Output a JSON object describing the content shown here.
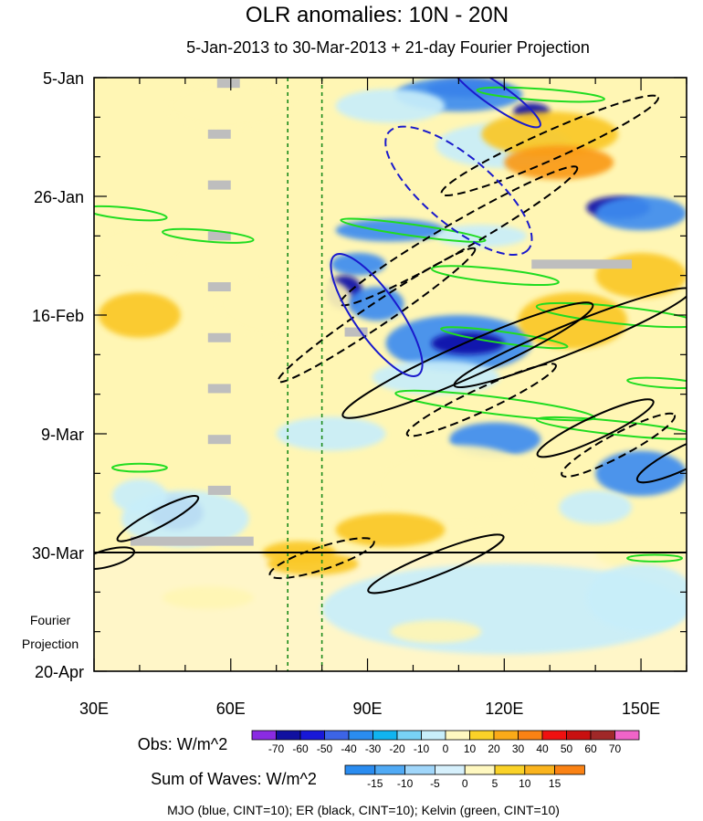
{
  "chart_data": {
    "type": "heatmap",
    "title": "OLR anomalies: 10N - 20N",
    "subtitle": "5-Jan-2013 to 30-Mar-2013 + 21-day Fourier Projection",
    "x_axis": {
      "range": [
        30,
        160
      ],
      "ticks": [
        30,
        60,
        90,
        120,
        150
      ],
      "tick_labels": [
        "30E",
        "60E",
        "90E",
        "120E",
        "150E"
      ]
    },
    "y_axis": {
      "range_days": [
        0,
        105
      ],
      "ticks_days": [
        0,
        21,
        42,
        63,
        84,
        105
      ],
      "tick_labels": [
        "5-Jan",
        "26-Jan",
        "16-Feb",
        "9-Mar",
        "30-Mar",
        "20-Apr"
      ],
      "projection_label_line1": "Fourier",
      "projection_label_line2": "Projection"
    },
    "observation_end_day": 84,
    "reference_longitudes": [
      72.5,
      80
    ],
    "colors": {
      "neg_strong": "#0f0fa8",
      "neg_mid": "#3c8cf0",
      "neg_weak": "#c8eefa",
      "pos_weak": "#fff6b4",
      "pos_mid": "#fac828",
      "pos_strong": "#fa9a14",
      "missing": "#bebebe",
      "mjo": "#1a1acc",
      "er": "#000000",
      "kelvin": "#20dc20",
      "ref_line": "#1a8a1a"
    },
    "obs_colorbar": {
      "label": "Obs: W/m^2",
      "levels": [
        "-70",
        "-60",
        "-50",
        "-40",
        "-30",
        "-20",
        "-10",
        "0",
        "10",
        "20",
        "30",
        "40",
        "50",
        "60",
        "70"
      ],
      "colors": [
        "#8a2be2",
        "#1010a0",
        "#1818d8",
        "#3c64e6",
        "#2a8cf0",
        "#10b4f0",
        "#78d2f5",
        "#c8eefa",
        "#fff8c0",
        "#fad228",
        "#faaa18",
        "#fa8214",
        "#f01010",
        "#c81010",
        "#a02828",
        "#f064c8"
      ]
    },
    "waves_colorbar": {
      "label": "Sum of Waves: W/m^2",
      "levels": [
        "-15",
        "-10",
        "-5",
        "0",
        "5",
        "10",
        "15"
      ],
      "colors": [
        "#2a8cf0",
        "#50aaf5",
        "#a0d6fa",
        "#d6f0fc",
        "#fff8c0",
        "#fad228",
        "#fab41e",
        "#fa8214"
      ]
    },
    "footnote": "MJO (blue, CINT=10); ER (black, CINT=10); Kelvin (green, CINT=10)",
    "anomaly_blobs": [
      {
        "lon": 112,
        "day": 2,
        "rlon": 9,
        "rday": 1.5,
        "level": -3
      },
      {
        "lon": 126,
        "day": 6,
        "rlon": 4,
        "rday": 1.5,
        "level": -3
      },
      {
        "lon": 110,
        "day": 3,
        "rlon": 14,
        "rday": 3,
        "level": -2
      },
      {
        "lon": 95,
        "day": 5,
        "rlon": 12,
        "rday": 3,
        "level": -1
      },
      {
        "lon": 120,
        "day": 12,
        "rlon": 15,
        "rday": 4,
        "level": -1
      },
      {
        "lon": 60,
        "day": 5,
        "rlon": 14,
        "rday": 4,
        "level": 1
      },
      {
        "lon": 130,
        "day": 10,
        "rlon": 15,
        "rday": 4,
        "level": 2
      },
      {
        "lon": 132,
        "day": 15,
        "rlon": 12,
        "rday": 3,
        "level": 3
      },
      {
        "lon": 145,
        "day": 23,
        "rlon": 7,
        "rday": 2,
        "level": -3
      },
      {
        "lon": 150,
        "day": 24,
        "rlon": 10,
        "rday": 3,
        "level": -2
      },
      {
        "lon": 95,
        "day": 27,
        "rlon": 12,
        "rday": 2,
        "level": -2
      },
      {
        "lon": 115,
        "day": 28,
        "rlon": 10,
        "rday": 2,
        "level": -1
      },
      {
        "lon": 88,
        "day": 33,
        "rlon": 6,
        "rday": 2,
        "level": -2
      },
      {
        "lon": 85,
        "day": 38,
        "rlon": 4,
        "rday": 3,
        "level": -3
      },
      {
        "lon": 40,
        "day": 30,
        "rlon": 10,
        "rday": 4,
        "level": 1
      },
      {
        "lon": 40,
        "day": 42,
        "rlon": 9,
        "rday": 4,
        "level": 2
      },
      {
        "lon": 72,
        "day": 40,
        "rlon": 15,
        "rday": 6,
        "level": 1
      },
      {
        "lon": 110,
        "day": 47,
        "rlon": 16,
        "rday": 5,
        "level": -2
      },
      {
        "lon": 112,
        "day": 47,
        "rlon": 8,
        "rday": 2,
        "level": -3
      },
      {
        "lon": 105,
        "day": 53,
        "rlon": 14,
        "rday": 3,
        "level": -1
      },
      {
        "lon": 92,
        "day": 40,
        "rlon": 6,
        "rday": 3,
        "level": -2
      },
      {
        "lon": 135,
        "day": 43,
        "rlon": 12,
        "rday": 5,
        "level": 2
      },
      {
        "lon": 150,
        "day": 35,
        "rlon": 10,
        "rday": 4,
        "level": 2
      },
      {
        "lon": 118,
        "day": 64,
        "rlon": 10,
        "rday": 3,
        "level": -2
      },
      {
        "lon": 82,
        "day": 63,
        "rlon": 12,
        "rday": 3,
        "level": -1
      },
      {
        "lon": 150,
        "day": 70,
        "rlon": 10,
        "rday": 4,
        "level": -2
      },
      {
        "lon": 140,
        "day": 76,
        "rlon": 8,
        "rday": 3,
        "level": -1
      },
      {
        "lon": 48,
        "day": 77,
        "rlon": 6,
        "rday": 3,
        "level": -3
      },
      {
        "lon": 50,
        "day": 78,
        "rlon": 14,
        "rday": 5,
        "level": -1
      },
      {
        "lon": 40,
        "day": 74,
        "rlon": 6,
        "rday": 3,
        "level": -1
      },
      {
        "lon": 110,
        "day": 72,
        "rlon": 18,
        "rday": 7,
        "level": 1
      },
      {
        "lon": 150,
        "day": 84,
        "rlon": 10,
        "rday": 3,
        "level": 1
      },
      {
        "lon": 95,
        "day": 80,
        "rlon": 12,
        "rday": 3,
        "level": 2
      },
      {
        "lon": 75,
        "day": 84,
        "rlon": 8,
        "rday": 2,
        "level": 2
      },
      {
        "lon": 120,
        "day": 94,
        "rlon": 40,
        "rday": 8,
        "level": -1
      },
      {
        "lon": 150,
        "day": 92,
        "rlon": 12,
        "rday": 6,
        "level": -1
      },
      {
        "lon": 55,
        "day": 92,
        "rlon": 10,
        "rday": 2,
        "level": 1
      },
      {
        "lon": 78,
        "day": 86,
        "rlon": 10,
        "rday": 2,
        "level": 2
      },
      {
        "lon": 105,
        "day": 98,
        "rlon": 10,
        "rday": 2,
        "level": 1
      }
    ],
    "missing_segments": [
      {
        "lon1": 57,
        "lon2": 62,
        "day": 1
      },
      {
        "lon1": 55,
        "lon2": 60,
        "day": 10
      },
      {
        "lon1": 55,
        "lon2": 60,
        "day": 19
      },
      {
        "lon1": 55,
        "lon2": 60,
        "day": 28
      },
      {
        "lon1": 55,
        "lon2": 60,
        "day": 37
      },
      {
        "lon1": 55,
        "lon2": 60,
        "day": 46
      },
      {
        "lon1": 55,
        "lon2": 60,
        "day": 55
      },
      {
        "lon1": 55,
        "lon2": 60,
        "day": 64
      },
      {
        "lon1": 55,
        "lon2": 60,
        "day": 73
      },
      {
        "lon1": 38,
        "lon2": 65,
        "day": 82
      },
      {
        "lon1": 85,
        "lon2": 90,
        "day": 45
      },
      {
        "lon1": 126,
        "lon2": 148,
        "day": 33
      }
    ],
    "mjo_contours": [
      {
        "lon": 110,
        "day": 20,
        "rlon": 20,
        "rday": 6,
        "rot": 40,
        "dash": true
      },
      {
        "lon": 92,
        "day": 42,
        "rlon": 16,
        "rday": 4,
        "rot": 55,
        "dash": false
      },
      {
        "lon": 118,
        "day": 3,
        "rlon": 12,
        "rday": 2,
        "rot": 35,
        "dash": false
      }
    ],
    "er_contours": [
      {
        "lon": 130,
        "day": 12,
        "rlon": 26,
        "rday": 2.5,
        "rot": -24,
        "dash": true
      },
      {
        "lon": 110,
        "day": 28,
        "rlon": 30,
        "rday": 2.5,
        "rot": -30,
        "dash": true
      },
      {
        "lon": 92,
        "day": 42,
        "rlon": 26,
        "rday": 2,
        "rot": -34,
        "dash": true
      },
      {
        "lon": 112,
        "day": 50,
        "rlon": 30,
        "rday": 3,
        "rot": -24,
        "dash": false
      },
      {
        "lon": 135,
        "day": 46,
        "rlon": 28,
        "rday": 2.5,
        "rot": -22,
        "dash": false
      },
      {
        "lon": 140,
        "day": 62,
        "rlon": 14,
        "rday": 2,
        "rot": -25,
        "dash": false
      },
      {
        "lon": 115,
        "day": 57,
        "rlon": 18,
        "rday": 2,
        "rot": -25,
        "dash": true
      },
      {
        "lon": 145,
        "day": 65,
        "rlon": 14,
        "rday": 2,
        "rot": -28,
        "dash": true
      },
      {
        "lon": 44,
        "day": 78,
        "rlon": 10,
        "rday": 1.5,
        "rot": -28,
        "dash": false
      },
      {
        "lon": 80,
        "day": 85,
        "rlon": 12,
        "rday": 2,
        "rot": -18,
        "dash": true
      },
      {
        "lon": 105,
        "day": 86,
        "rlon": 16,
        "rday": 2,
        "rot": -22,
        "dash": false
      },
      {
        "lon": 160,
        "day": 67,
        "rlon": 12,
        "rday": 2,
        "rot": -26,
        "dash": false
      },
      {
        "lon": 33,
        "day": 85,
        "rlon": 6,
        "rday": 1.5,
        "rot": -15,
        "dash": false
      }
    ],
    "kelvin_contours": [
      {
        "lon": 37,
        "day": 24,
        "rlon": 9,
        "rday": 1,
        "rot": 6
      },
      {
        "lon": 55,
        "day": 28,
        "rlon": 10,
        "rday": 1,
        "rot": 5
      },
      {
        "lon": 100,
        "day": 27,
        "rlon": 16,
        "rday": 1,
        "rot": 8
      },
      {
        "lon": 118,
        "day": 35,
        "rlon": 14,
        "rday": 1.2,
        "rot": 6
      },
      {
        "lon": 145,
        "day": 42,
        "rlon": 18,
        "rday": 1.5,
        "rot": 6
      },
      {
        "lon": 120,
        "day": 46,
        "rlon": 14,
        "rday": 1,
        "rot": 8
      },
      {
        "lon": 118,
        "day": 58,
        "rlon": 22,
        "rday": 1.5,
        "rot": 7
      },
      {
        "lon": 145,
        "day": 62,
        "rlon": 18,
        "rday": 1.2,
        "rot": 6
      },
      {
        "lon": 128,
        "day": 3,
        "rlon": 14,
        "rday": 1,
        "rot": 4
      },
      {
        "lon": 40,
        "day": 69,
        "rlon": 6,
        "rday": 0.7,
        "rot": 0
      },
      {
        "lon": 155,
        "day": 54,
        "rlon": 8,
        "rday": 0.8,
        "rot": 4
      },
      {
        "lon": 153,
        "day": 85,
        "rlon": 6,
        "rday": 0.6,
        "rot": 0
      }
    ]
  }
}
